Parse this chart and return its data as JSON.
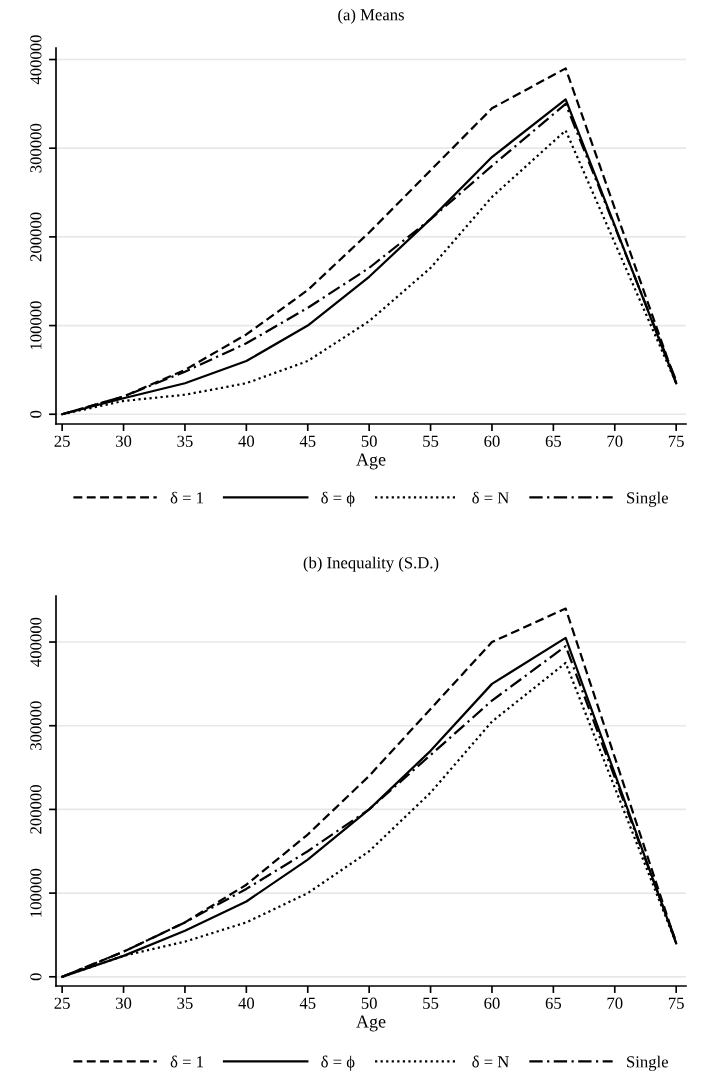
{
  "chart_data": [
    {
      "type": "line",
      "title": "(a) Means",
      "xlabel": "Age",
      "x": [
        25,
        30,
        35,
        40,
        45,
        50,
        55,
        60,
        66,
        75
      ],
      "xlim": [
        24.5,
        75.8
      ],
      "xticks": [
        25,
        30,
        35,
        40,
        45,
        50,
        55,
        60,
        65,
        70,
        75
      ],
      "ylim": [
        -11000,
        413000
      ],
      "yticks": [
        0,
        100000,
        200000,
        300000,
        400000
      ],
      "grid": "y",
      "legend": "bottom",
      "series": [
        {
          "name": "δ = 1",
          "color": "#000000",
          "line_style": "dashed",
          "values": [
            0,
            20000,
            50000,
            90000,
            140000,
            205000,
            275000,
            345000,
            390000,
            35000
          ]
        },
        {
          "name": "δ = ϕ",
          "color": "#000000",
          "line_style": "solid",
          "values": [
            0,
            18000,
            35000,
            60000,
            100000,
            155000,
            220000,
            290000,
            355000,
            35000
          ]
        },
        {
          "name": "δ = N",
          "color": "#000000",
          "line_style": "dotted",
          "values": [
            0,
            15000,
            22000,
            35000,
            60000,
            105000,
            165000,
            245000,
            320000,
            35000
          ]
        },
        {
          "name": "Single",
          "color": "#000000",
          "line_style": "dashdot",
          "values": [
            0,
            20000,
            48000,
            80000,
            120000,
            165000,
            220000,
            280000,
            350000,
            38000
          ]
        }
      ]
    },
    {
      "type": "line",
      "title": "(b) Inequality (S.D.)",
      "xlabel": "Age",
      "x": [
        25,
        30,
        35,
        40,
        45,
        50,
        55,
        60,
        66,
        75
      ],
      "xlim": [
        24.5,
        75.8
      ],
      "xticks": [
        25,
        30,
        35,
        40,
        45,
        50,
        55,
        60,
        65,
        70,
        75
      ],
      "ylim": [
        -11000,
        455000
      ],
      "yticks": [
        0,
        100000,
        200000,
        300000,
        400000
      ],
      "grid": "y",
      "legend": "bottom",
      "series": [
        {
          "name": "δ = 1",
          "color": "#000000",
          "line_style": "dashed",
          "values": [
            0,
            30000,
            65000,
            110000,
            170000,
            240000,
            320000,
            400000,
            440000,
            40000
          ]
        },
        {
          "name": "δ = ϕ",
          "color": "#000000",
          "line_style": "solid",
          "values": [
            0,
            25000,
            55000,
            90000,
            140000,
            200000,
            270000,
            350000,
            405000,
            40000
          ]
        },
        {
          "name": "δ = N",
          "color": "#000000",
          "line_style": "dotted",
          "values": [
            0,
            25000,
            42000,
            65000,
            100000,
            150000,
            220000,
            305000,
            375000,
            40000
          ]
        },
        {
          "name": "Single",
          "color": "#000000",
          "line_style": "dashdot",
          "values": [
            0,
            30000,
            65000,
            105000,
            150000,
            200000,
            265000,
            330000,
            395000,
            42000
          ]
        }
      ]
    }
  ]
}
